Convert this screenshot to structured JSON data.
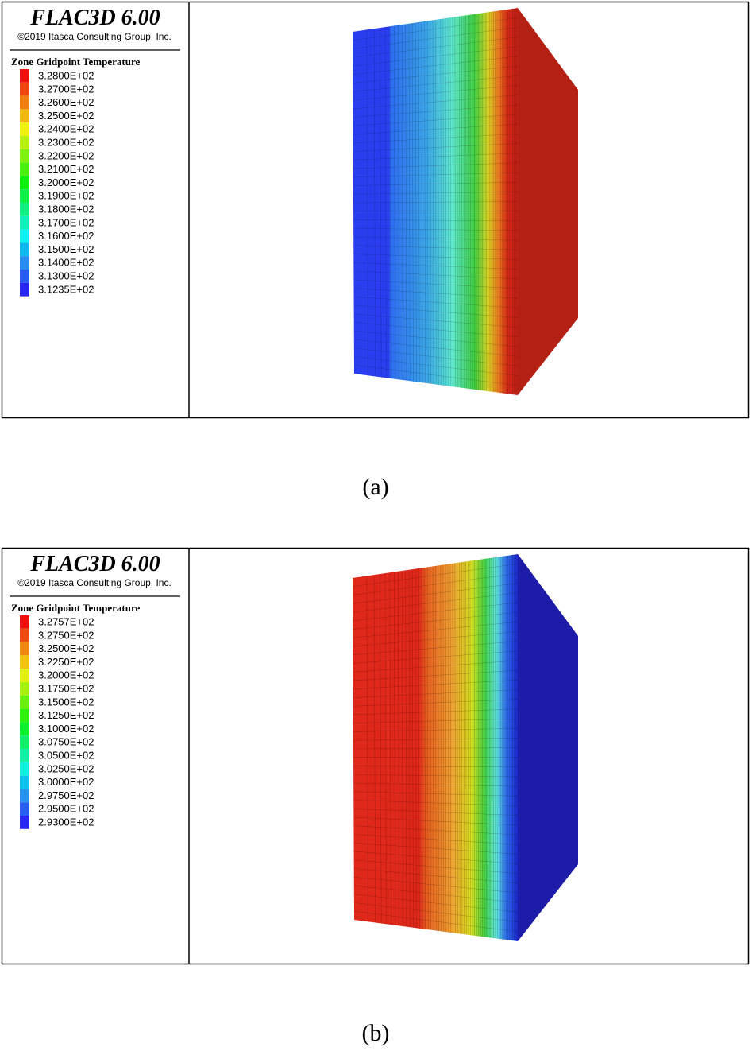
{
  "panels": [
    {
      "caption": "(a)",
      "title": "FLAC3D 6.00",
      "copyright": "©2019 Itasca Consulting Group, Inc.",
      "legend_title": "Zone Gridpoint Temperature",
      "legend_labels": [
        "3.2800E+02",
        "3.2700E+02",
        "3.2600E+02",
        "3.2500E+02",
        "3.2400E+02",
        "3.2300E+02",
        "3.2200E+02",
        "3.2100E+02",
        "3.2000E+02",
        "3.1900E+02",
        "3.1800E+02",
        "3.1700E+02",
        "3.1600E+02",
        "3.1500E+02",
        "3.1400E+02",
        "3.1300E+02",
        "3.1235E+02"
      ]
    },
    {
      "caption": "(b)",
      "title": "FLAC3D 6.00",
      "copyright": "©2019 Itasca Consulting Group, Inc.",
      "legend_title": "Zone Gridpoint Temperature",
      "legend_labels": [
        "3.2757E+02",
        "3.2750E+02",
        "3.2500E+02",
        "3.2250E+02",
        "3.2000E+02",
        "3.1750E+02",
        "3.1500E+02",
        "3.1250E+02",
        "3.1000E+02",
        "3.0750E+02",
        "3.0500E+02",
        "3.0250E+02",
        "3.0000E+02",
        "2.9750E+02",
        "2.9500E+02",
        "2.9300E+02"
      ]
    }
  ]
}
